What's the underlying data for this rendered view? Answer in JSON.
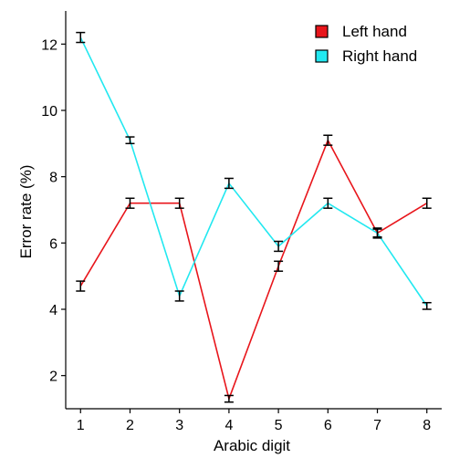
{
  "chart_data": {
    "type": "line",
    "xlabel": "Arabic digit",
    "ylabel": "Error rate (%)",
    "categories": [
      "1",
      "2",
      "3",
      "4",
      "5",
      "6",
      "7",
      "8"
    ],
    "x": [
      1,
      2,
      3,
      4,
      5,
      6,
      7,
      8
    ],
    "xlim": [
      0.7,
      8.3
    ],
    "ylim": [
      1.0,
      13.0
    ],
    "yticks": [
      2,
      4,
      6,
      8,
      10,
      12
    ],
    "ytick_labels": [
      "2",
      "4",
      "6",
      "8",
      "10",
      "12"
    ],
    "grid": false,
    "legend_position": "top-right",
    "series": [
      {
        "name": "Left hand",
        "color": "#e8151b",
        "values": [
          4.7,
          7.2,
          7.2,
          1.3,
          5.3,
          9.1,
          6.3,
          7.2
        ],
        "errors": [
          0.15,
          0.15,
          0.15,
          0.1,
          0.15,
          0.15,
          0.12,
          0.15
        ]
      },
      {
        "name": "Right hand",
        "color": "#22e8f0",
        "values": [
          12.2,
          9.1,
          4.4,
          7.8,
          5.9,
          7.2,
          6.3,
          4.1
        ],
        "errors": [
          0.15,
          0.1,
          0.15,
          0.15,
          0.15,
          0.15,
          0.15,
          0.1
        ]
      }
    ]
  }
}
